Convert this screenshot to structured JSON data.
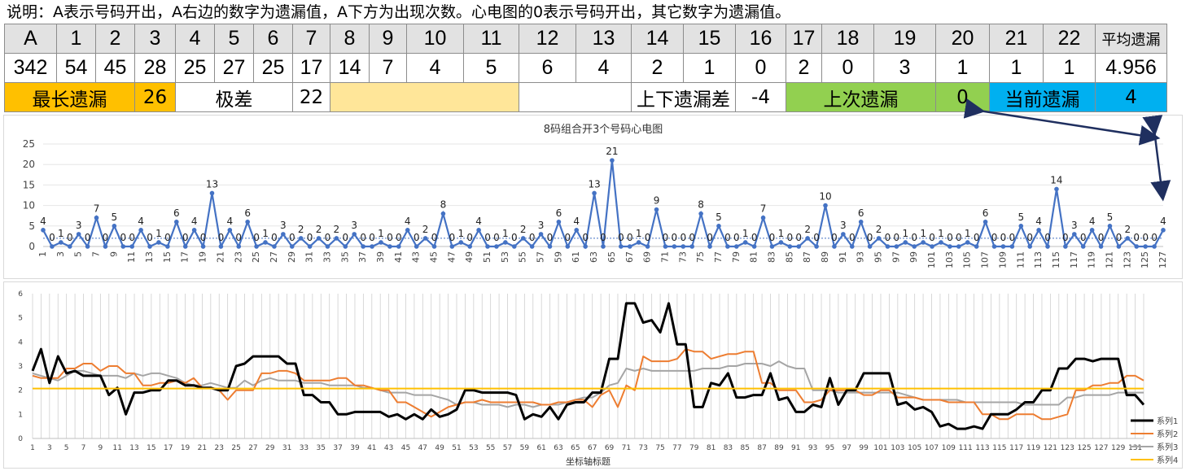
{
  "description": "说明：A表示号码开出，A右边的数字为遗漏值，A下方为出现次数。心电图的0表示号码开出，其它数字为遗漏值。",
  "stats_table": {
    "headers": [
      "A",
      "1",
      "2",
      "3",
      "4",
      "5",
      "6",
      "7",
      "8",
      "9",
      "10",
      "11",
      "12",
      "13",
      "14",
      "15",
      "16",
      "17",
      "18",
      "19",
      "20",
      "21",
      "22",
      "平均遗漏"
    ],
    "values": [
      "342",
      "54",
      "45",
      "28",
      "25",
      "27",
      "25",
      "17",
      "14",
      "7",
      "4",
      "5",
      "6",
      "4",
      "2",
      "1",
      "0",
      "2",
      "0",
      "3",
      "1",
      "1",
      "1",
      "4.956"
    ],
    "summary": {
      "longest_label": "最长遗漏",
      "longest_value": "26",
      "range_label": "极差",
      "range_value": "22",
      "diff_label": "上下遗漏差",
      "diff_value": "-4",
      "last_label": "上次遗漏",
      "last_value": "0",
      "current_label": "当前遗漏",
      "current_value": "4"
    },
    "colors": {
      "header_bg": "#e2e2e2",
      "orange": "#ffc000",
      "light_orange": "#ffe699",
      "green": "#92d050",
      "blue": "#00b0f0",
      "arrow": "#1f2f5f"
    }
  },
  "chart_data": [
    {
      "type": "line",
      "title": "8码组合开3个号码心电图",
      "xlabel": "",
      "ylabel": "",
      "ylim": [
        0,
        25
      ],
      "yticks": [
        0,
        5,
        10,
        15,
        20,
        25
      ],
      "xtick_step": 2,
      "x": [
        1,
        2,
        3,
        4,
        5,
        6,
        7,
        8,
        9,
        10,
        11,
        12,
        13,
        14,
        15,
        16,
        17,
        18,
        19,
        20,
        21,
        22,
        23,
        24,
        25,
        26,
        27,
        28,
        29,
        30,
        31,
        32,
        33,
        34,
        35,
        36,
        37,
        38,
        39,
        40,
        41,
        42,
        43,
        44,
        45,
        46,
        47,
        48,
        49,
        50,
        51,
        52,
        53,
        54,
        55,
        56,
        57,
        58,
        59,
        60,
        61,
        62,
        63,
        64,
        65,
        66,
        67,
        68,
        69,
        70,
        71,
        72,
        73,
        74,
        75,
        76,
        77,
        78,
        79,
        80,
        81,
        82,
        83,
        84,
        85,
        86,
        87,
        88,
        89,
        90,
        91,
        92,
        93,
        94,
        95,
        96,
        97,
        98,
        99,
        100,
        101,
        102,
        103,
        104,
        105,
        106,
        107,
        108,
        109,
        110,
        111,
        112,
        113,
        114,
        115,
        116,
        117,
        118,
        119,
        120,
        121,
        122,
        123,
        124,
        125,
        126,
        127
      ],
      "values": [
        4,
        0,
        1,
        0,
        3,
        0,
        7,
        0,
        5,
        0,
        0,
        4,
        0,
        1,
        0,
        6,
        0,
        4,
        0,
        13,
        0,
        4,
        0,
        6,
        0,
        1,
        0,
        3,
        0,
        2,
        0,
        2,
        0,
        2,
        0,
        3,
        0,
        0,
        1,
        0,
        0,
        4,
        0,
        2,
        0,
        8,
        0,
        1,
        0,
        4,
        0,
        0,
        1,
        0,
        2,
        0,
        3,
        0,
        6,
        0,
        4,
        0,
        13,
        0,
        21,
        0,
        0,
        1,
        0,
        9,
        0,
        0,
        0,
        0,
        8,
        0,
        5,
        0,
        0,
        1,
        0,
        7,
        0,
        1,
        0,
        0,
        2,
        0,
        10,
        0,
        3,
        0,
        6,
        0,
        2,
        0,
        0,
        1,
        0,
        1,
        0,
        1,
        0,
        0,
        1,
        0,
        6,
        0,
        0,
        0,
        5,
        0,
        4,
        0,
        14,
        0,
        3,
        0,
        4,
        0,
        5,
        0,
        2,
        0,
        0,
        0,
        4
      ],
      "average": 2.0,
      "color": "#4472c4"
    },
    {
      "type": "line",
      "title": "",
      "xlabel": "坐标轴标题",
      "ylabel": "",
      "ylim": [
        0,
        6
      ],
      "yticks": [
        0,
        1,
        2,
        3,
        4,
        5,
        6
      ],
      "xtick_step": 2,
      "x_count": 132,
      "series": [
        {
          "name": "系列1",
          "color": "#000000",
          "values": [
            2.8,
            3.7,
            2.3,
            3.4,
            2.7,
            2.8,
            2.6,
            2.6,
            2.6,
            1.8,
            2.1,
            1.0,
            1.9,
            1.9,
            2.0,
            2.0,
            2.4,
            2.4,
            2.2,
            2.2,
            2.1,
            2.1,
            2.0,
            2.0,
            3.0,
            3.1,
            3.4,
            3.4,
            3.4,
            3.4,
            3.1,
            3.1,
            1.8,
            1.8,
            1.5,
            1.5,
            1.0,
            1.0,
            1.1,
            1.1,
            1.1,
            1.1,
            0.9,
            1.0,
            0.8,
            1.0,
            0.8,
            1.2,
            0.9,
            1.0,
            1.2,
            2.0,
            2.0,
            1.9,
            1.9,
            1.9,
            1.9,
            1.8,
            0.8,
            1.0,
            0.9,
            1.3,
            0.8,
            1.4,
            1.5,
            1.5,
            1.9,
            1.9,
            3.3,
            3.3,
            5.6,
            5.6,
            4.8,
            4.9,
            4.4,
            5.6,
            3.9,
            3.9,
            1.3,
            1.3,
            2.3,
            2.2,
            2.7,
            1.7,
            1.7,
            1.8,
            1.8,
            2.7,
            1.6,
            1.7,
            1.1,
            1.1,
            1.4,
            1.3,
            2.5,
            1.4,
            2.0,
            2.0,
            2.7,
            2.7,
            2.7,
            2.7,
            1.4,
            1.5,
            1.2,
            1.3,
            1.1,
            0.5,
            0.6,
            0.4,
            0.4,
            0.5,
            0.4,
            1.0,
            1.0,
            1.0,
            1.2,
            1.5,
            1.5,
            2.0,
            2.0,
            2.9,
            2.9,
            3.3,
            3.3,
            3.2,
            3.3,
            3.3,
            3.3,
            1.8,
            1.8,
            1.4
          ]
        },
        {
          "name": "系列2",
          "color": "#ed7d31",
          "values": [
            2.6,
            2.5,
            2.5,
            2.5,
            2.9,
            2.9,
            3.1,
            3.1,
            2.8,
            3.0,
            3.0,
            2.7,
            2.7,
            2.2,
            2.2,
            2.3,
            2.3,
            2.4,
            2.3,
            2.5,
            2.1,
            2.1,
            2.0,
            1.6,
            2.0,
            2.0,
            2.0,
            2.7,
            2.7,
            2.8,
            2.8,
            2.7,
            2.4,
            2.4,
            2.4,
            2.4,
            2.5,
            2.5,
            2.2,
            2.2,
            2.1,
            2.0,
            2.0,
            1.5,
            1.5,
            1.3,
            1.1,
            0.9,
            1.1,
            1.3,
            1.4,
            1.5,
            1.5,
            1.6,
            1.5,
            1.5,
            1.5,
            1.5,
            1.5,
            1.5,
            1.4,
            1.4,
            1.5,
            1.5,
            1.6,
            1.6,
            1.3,
            1.8,
            2.0,
            1.3,
            2.2,
            2.0,
            3.4,
            3.2,
            3.2,
            3.2,
            3.3,
            3.7,
            3.6,
            3.6,
            3.3,
            3.4,
            3.5,
            3.5,
            3.6,
            3.6,
            2.3,
            2.3,
            2.0,
            2.0,
            2.0,
            1.5,
            1.5,
            1.6,
            2.0,
            2.0,
            2.0,
            2.0,
            1.8,
            1.8,
            2.0,
            2.0,
            1.7,
            1.7,
            1.7,
            1.6,
            1.6,
            1.6,
            1.5,
            1.5,
            1.5,
            1.5,
            1.0,
            1.0,
            0.8,
            0.8,
            1.0,
            1.0,
            1.0,
            0.8,
            0.8,
            0.9,
            1.0,
            2.0,
            2.0,
            2.2,
            2.2,
            2.3,
            2.3,
            2.6,
            2.6,
            2.4
          ]
        },
        {
          "name": "系列3",
          "color": "#a5a5a5",
          "values": [
            2.7,
            2.6,
            2.5,
            2.4,
            2.6,
            2.8,
            2.8,
            2.7,
            2.6,
            2.6,
            2.6,
            2.5,
            2.7,
            2.6,
            2.7,
            2.7,
            2.6,
            2.5,
            2.3,
            2.2,
            2.2,
            2.3,
            2.2,
            2.1,
            2.1,
            2.4,
            2.2,
            2.4,
            2.5,
            2.4,
            2.4,
            2.4,
            2.3,
            2.3,
            2.3,
            2.2,
            2.2,
            2.2,
            2.2,
            2.1,
            2.1,
            2.0,
            1.9,
            1.9,
            1.9,
            1.8,
            1.8,
            1.8,
            1.7,
            1.6,
            1.4,
            1.5,
            1.5,
            1.4,
            1.4,
            1.4,
            1.3,
            1.4,
            1.4,
            1.3,
            1.4,
            1.4,
            1.4,
            1.5,
            1.6,
            1.7,
            1.7,
            1.9,
            2.2,
            2.3,
            2.9,
            2.8,
            2.9,
            2.8,
            2.8,
            2.8,
            2.8,
            2.8,
            2.8,
            2.9,
            2.9,
            2.9,
            3.0,
            3.0,
            3.1,
            3.1,
            3.1,
            3.0,
            3.2,
            3.0,
            2.9,
            2.9,
            2.0,
            2.0,
            2.0,
            1.9,
            1.9,
            1.9,
            1.9,
            1.9,
            1.9,
            1.9,
            1.9,
            1.8,
            1.7,
            1.6,
            1.6,
            1.6,
            1.6,
            1.6,
            1.5,
            1.5,
            1.5,
            1.5,
            1.5,
            1.5,
            1.5,
            1.4,
            1.4,
            1.4,
            1.4,
            1.4,
            1.7,
            1.7,
            1.8,
            1.8,
            1.8,
            1.8,
            1.9,
            1.9,
            1.9,
            1.9
          ]
        },
        {
          "name": "系列4",
          "color": "#ffc000",
          "constant": 2.07
        }
      ]
    }
  ]
}
